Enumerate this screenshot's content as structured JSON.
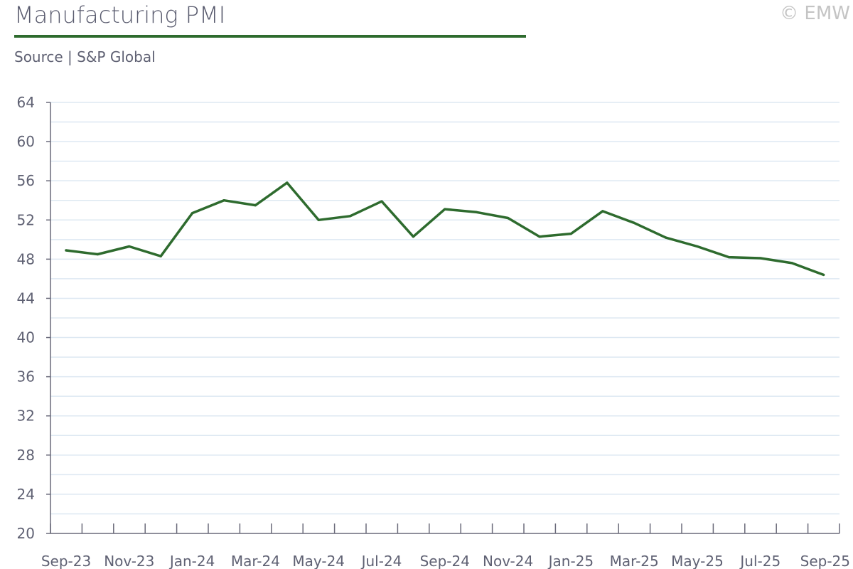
{
  "header": {
    "title": "Manufacturing PMI",
    "subtitle": "Source | S&P Global",
    "copyright": "© EMW"
  },
  "colors": {
    "line": "#2e6b2e",
    "grid": "#dde8f2",
    "axis": "#6a6a7a",
    "text": "#5f6173"
  },
  "chart_data": {
    "type": "line",
    "title": "Manufacturing PMI",
    "subtitle": "Source | S&P Global",
    "xlabel": "",
    "ylabel": "",
    "ylim": [
      20,
      64
    ],
    "yticks": [
      20,
      24,
      28,
      32,
      36,
      40,
      44,
      48,
      52,
      56,
      60,
      64
    ],
    "grid": true,
    "legend": "none",
    "x": [
      "Sep-23",
      "Oct-23",
      "Nov-23",
      "Dec-23",
      "Jan-24",
      "Feb-24",
      "Mar-24",
      "Apr-24",
      "May-24",
      "Jun-24",
      "Jul-24",
      "Aug-24",
      "Sep-24",
      "Oct-24",
      "Nov-24",
      "Dec-24",
      "Jan-25",
      "Feb-25",
      "Mar-25",
      "Apr-25",
      "May-25",
      "Jun-25",
      "Jul-25",
      "Aug-25",
      "Sep-25"
    ],
    "xtick_labels": [
      "Sep-23",
      "Nov-23",
      "Jan-24",
      "Mar-24",
      "May-24",
      "Jul-24",
      "Sep-24",
      "Nov-24",
      "Jan-25",
      "Mar-25",
      "May-25",
      "Jul-25",
      "Sep-25"
    ],
    "series": [
      {
        "values": [
          48.9,
          48.5,
          49.3,
          48.3,
          52.7,
          54.0,
          53.5,
          55.8,
          52.0,
          52.4,
          53.9,
          50.3,
          53.1,
          52.8,
          52.2,
          50.3,
          50.6,
          52.9,
          51.7,
          50.2,
          49.3,
          48.2,
          48.1,
          47.6,
          46.4
        ]
      }
    ]
  }
}
